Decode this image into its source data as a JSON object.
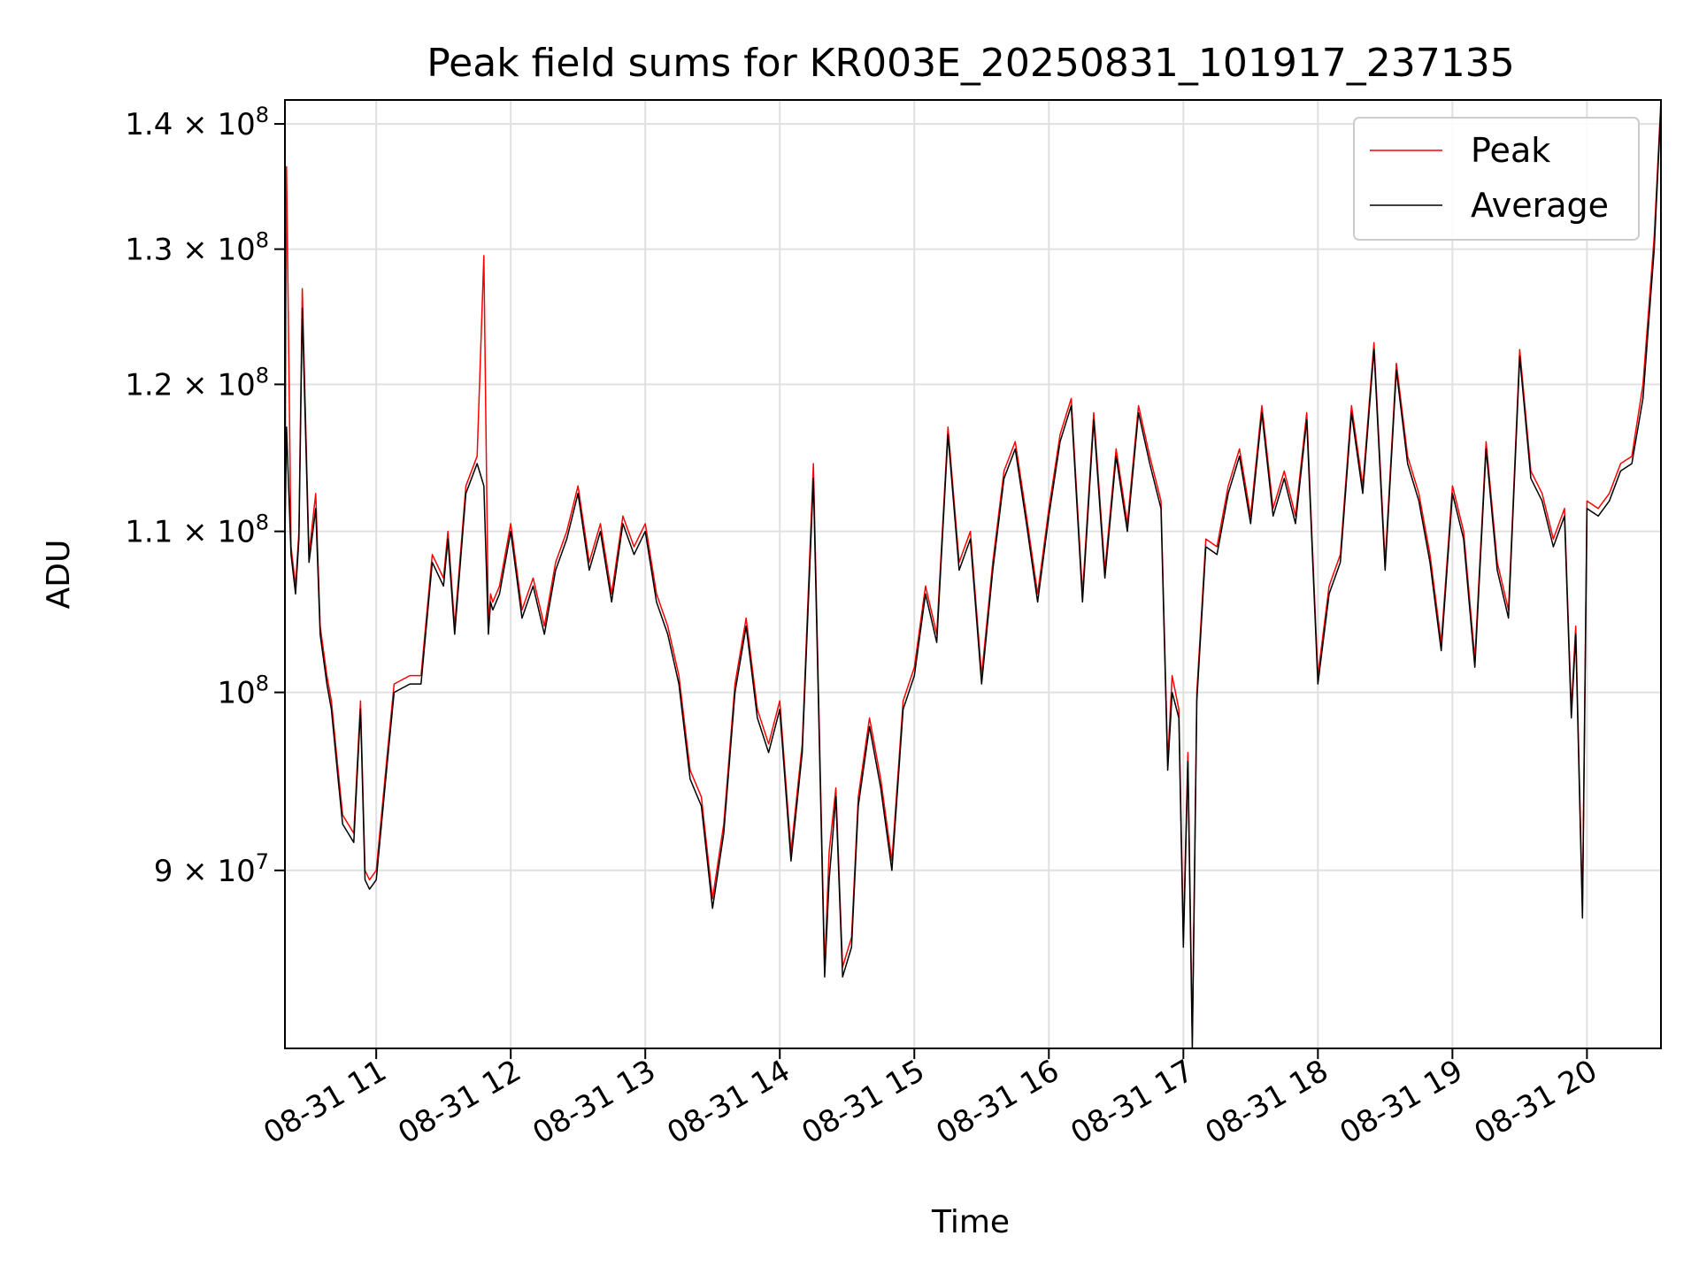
{
  "chart_data": {
    "type": "line",
    "title": "Peak field sums for KR003E_20250831_101917_237135",
    "xlabel": "Time",
    "ylabel": "ADU",
    "y_scale": "log",
    "ylim": [
      81000000,
      142000000
    ],
    "xlim": [
      "2025-08-31T10:19:17",
      "2025-08-31T20:33:00"
    ],
    "grid": true,
    "legend_position": "upper right",
    "x_ticks": [
      {
        "value": "2025-08-31T11:00:00",
        "label": "08-31 11"
      },
      {
        "value": "2025-08-31T12:00:00",
        "label": "08-31 12"
      },
      {
        "value": "2025-08-31T13:00:00",
        "label": "08-31 13"
      },
      {
        "value": "2025-08-31T14:00:00",
        "label": "08-31 14"
      },
      {
        "value": "2025-08-31T15:00:00",
        "label": "08-31 15"
      },
      {
        "value": "2025-08-31T16:00:00",
        "label": "08-31 16"
      },
      {
        "value": "2025-08-31T17:00:00",
        "label": "08-31 17"
      },
      {
        "value": "2025-08-31T18:00:00",
        "label": "08-31 18"
      },
      {
        "value": "2025-08-31T19:00:00",
        "label": "08-31 19"
      },
      {
        "value": "2025-08-31T20:00:00",
        "label": "08-31 20"
      }
    ],
    "y_ticks": [
      {
        "value": 90000000,
        "base": "9 × 10",
        "exp": "7"
      },
      {
        "value": 100000000,
        "base": "10",
        "exp": "8"
      },
      {
        "value": 110000000,
        "base": "1.1 × 10",
        "exp": "8"
      },
      {
        "value": 120000000,
        "base": "1.2 × 10",
        "exp": "8"
      },
      {
        "value": 130000000,
        "base": "1.3 × 10",
        "exp": "8"
      },
      {
        "value": 140000000,
        "base": "1.4 × 10",
        "exp": "8"
      }
    ],
    "colors": {
      "Peak": "#ff0000",
      "Average": "#000000"
    },
    "series": [
      {
        "name": "Peak",
        "x": [
          "2025-08-31T10:19:17",
          "2025-08-31T10:20:00",
          "2025-08-31T10:22:00",
          "2025-08-31T10:24:00",
          "2025-08-31T10:25:30",
          "2025-08-31T10:27:00",
          "2025-08-31T10:30:00",
          "2025-08-31T10:33:00",
          "2025-08-31T10:35:00",
          "2025-08-31T10:38:00",
          "2025-08-31T10:40:00",
          "2025-08-31T10:43:00",
          "2025-08-31T10:45:00",
          "2025-08-31T10:50:00",
          "2025-08-31T10:53:00",
          "2025-08-31T10:55:00",
          "2025-08-31T10:57:00",
          "2025-08-31T11:00:00",
          "2025-08-31T11:05:00",
          "2025-08-31T11:08:00",
          "2025-08-31T11:15:00",
          "2025-08-31T11:20:00",
          "2025-08-31T11:25:00",
          "2025-08-31T11:30:00",
          "2025-08-31T11:32:00",
          "2025-08-31T11:35:00",
          "2025-08-31T11:40:00",
          "2025-08-31T11:45:00",
          "2025-08-31T11:48:00",
          "2025-08-31T11:50:00",
          "2025-08-31T11:51:00",
          "2025-08-31T11:52:00",
          "2025-08-31T11:55:00",
          "2025-08-31T12:00:00",
          "2025-08-31T12:05:00",
          "2025-08-31T12:10:00",
          "2025-08-31T12:15:00",
          "2025-08-31T12:20:00",
          "2025-08-31T12:25:00",
          "2025-08-31T12:30:00",
          "2025-08-31T12:35:00",
          "2025-08-31T12:40:00",
          "2025-08-31T12:45:00",
          "2025-08-31T12:50:00",
          "2025-08-31T12:55:00",
          "2025-08-31T13:00:00",
          "2025-08-31T13:05:00",
          "2025-08-31T13:10:00",
          "2025-08-31T13:15:00",
          "2025-08-31T13:20:00",
          "2025-08-31T13:25:00",
          "2025-08-31T13:30:00",
          "2025-08-31T13:35:00",
          "2025-08-31T13:40:00",
          "2025-08-31T13:45:00",
          "2025-08-31T13:50:00",
          "2025-08-31T13:55:00",
          "2025-08-31T14:00:00",
          "2025-08-31T14:05:00",
          "2025-08-31T14:10:00",
          "2025-08-31T14:15:00",
          "2025-08-31T14:20:00",
          "2025-08-31T14:22:00",
          "2025-08-31T14:25:00",
          "2025-08-31T14:28:00",
          "2025-08-31T14:32:00",
          "2025-08-31T14:35:00",
          "2025-08-31T14:40:00",
          "2025-08-31T14:45:00",
          "2025-08-31T14:50:00",
          "2025-08-31T14:55:00",
          "2025-08-31T15:00:00",
          "2025-08-31T15:05:00",
          "2025-08-31T15:10:00",
          "2025-08-31T15:15:00",
          "2025-08-31T15:20:00",
          "2025-08-31T15:25:00",
          "2025-08-31T15:30:00",
          "2025-08-31T15:35:00",
          "2025-08-31T15:40:00",
          "2025-08-31T15:45:00",
          "2025-08-31T15:50:00",
          "2025-08-31T15:55:00",
          "2025-08-31T16:00:00",
          "2025-08-31T16:05:00",
          "2025-08-31T16:10:00",
          "2025-08-31T16:15:00",
          "2025-08-31T16:20:00",
          "2025-08-31T16:25:00",
          "2025-08-31T16:30:00",
          "2025-08-31T16:35:00",
          "2025-08-31T16:40:00",
          "2025-08-31T16:45:00",
          "2025-08-31T16:50:00",
          "2025-08-31T16:53:00",
          "2025-08-31T16:55:00",
          "2025-08-31T16:58:00",
          "2025-08-31T17:00:00",
          "2025-08-31T17:02:00",
          "2025-08-31T17:04:00",
          "2025-08-31T17:06:00",
          "2025-08-31T17:10:00",
          "2025-08-31T17:15:00",
          "2025-08-31T17:20:00",
          "2025-08-31T17:25:00",
          "2025-08-31T17:30:00",
          "2025-08-31T17:35:00",
          "2025-08-31T17:40:00",
          "2025-08-31T17:45:00",
          "2025-08-31T17:50:00",
          "2025-08-31T17:55:00",
          "2025-08-31T18:00:00",
          "2025-08-31T18:05:00",
          "2025-08-31T18:10:00",
          "2025-08-31T18:15:00",
          "2025-08-31T18:20:00",
          "2025-08-31T18:25:00",
          "2025-08-31T18:30:00",
          "2025-08-31T18:35:00",
          "2025-08-31T18:40:00",
          "2025-08-31T18:45:00",
          "2025-08-31T18:50:00",
          "2025-08-31T18:55:00",
          "2025-08-31T19:00:00",
          "2025-08-31T19:05:00",
          "2025-08-31T19:10:00",
          "2025-08-31T19:15:00",
          "2025-08-31T19:20:00",
          "2025-08-31T19:25:00",
          "2025-08-31T19:30:00",
          "2025-08-31T19:35:00",
          "2025-08-31T19:40:00",
          "2025-08-31T19:45:00",
          "2025-08-31T19:50:00",
          "2025-08-31T19:53:00",
          "2025-08-31T19:55:00",
          "2025-08-31T19:58:00",
          "2025-08-31T20:00:00",
          "2025-08-31T20:05:00",
          "2025-08-31T20:10:00",
          "2025-08-31T20:15:00",
          "2025-08-31T20:20:00",
          "2025-08-31T20:25:00",
          "2025-08-31T20:30:00",
          "2025-08-31T20:33:00"
        ],
        "y": [
          110000000,
          136500000,
          109000000,
          106500000,
          110000000,
          127000000,
          108500000,
          112500000,
          104000000,
          101000000,
          99500000,
          95500000,
          93000000,
          92000000,
          99500000,
          90000000,
          89500000,
          90000000,
          96500000,
          100500000,
          101000000,
          101000000,
          108500000,
          107000000,
          110000000,
          104000000,
          113000000,
          115000000,
          129500000,
          104000000,
          106000000,
          105500000,
          106500000,
          110500000,
          105000000,
          107000000,
          104000000,
          108000000,
          110000000,
          113000000,
          108000000,
          110500000,
          106000000,
          111000000,
          109000000,
          110500000,
          106000000,
          104000000,
          101000000,
          95500000,
          94000000,
          88500000,
          92500000,
          100500000,
          104500000,
          99000000,
          97000000,
          99500000,
          91000000,
          97000000,
          114500000,
          85000000,
          91000000,
          94500000,
          85000000,
          86500000,
          94000000,
          98500000,
          95000000,
          90500000,
          99500000,
          101500000,
          106500000,
          103500000,
          117000000,
          108000000,
          110000000,
          101000000,
          108000000,
          114000000,
          116000000,
          111000000,
          106000000,
          111500000,
          116500000,
          119000000,
          106000000,
          118000000,
          107500000,
          115500000,
          110500000,
          118500000,
          115000000,
          112000000,
          96000000,
          101000000,
          99000000,
          86500000,
          96500000,
          81500000,
          100000000,
          109500000,
          109000000,
          113000000,
          115500000,
          111000000,
          118500000,
          111500000,
          114000000,
          111000000,
          118000000,
          101000000,
          106500000,
          108500000,
          118500000,
          113000000,
          123000000,
          108000000,
          121500000,
          115000000,
          112500000,
          108500000,
          103000000,
          113000000,
          110000000,
          102000000,
          116000000,
          108000000,
          105000000,
          122500000,
          114000000,
          112500000,
          109500000,
          111500000,
          99000000,
          104000000,
          88000000,
          112000000,
          111500000,
          112500000,
          114500000,
          115000000,
          120000000,
          131000000,
          142000000
        ]
      },
      {
        "name": "Average",
        "x": [
          "2025-08-31T10:19:17",
          "2025-08-31T10:20:00",
          "2025-08-31T10:22:00",
          "2025-08-31T10:24:00",
          "2025-08-31T10:25:30",
          "2025-08-31T10:27:00",
          "2025-08-31T10:30:00",
          "2025-08-31T10:33:00",
          "2025-08-31T10:35:00",
          "2025-08-31T10:38:00",
          "2025-08-31T10:40:00",
          "2025-08-31T10:43:00",
          "2025-08-31T10:45:00",
          "2025-08-31T10:50:00",
          "2025-08-31T10:53:00",
          "2025-08-31T10:55:00",
          "2025-08-31T10:57:00",
          "2025-08-31T11:00:00",
          "2025-08-31T11:05:00",
          "2025-08-31T11:08:00",
          "2025-08-31T11:15:00",
          "2025-08-31T11:20:00",
          "2025-08-31T11:25:00",
          "2025-08-31T11:30:00",
          "2025-08-31T11:32:00",
          "2025-08-31T11:35:00",
          "2025-08-31T11:40:00",
          "2025-08-31T11:45:00",
          "2025-08-31T11:48:00",
          "2025-08-31T11:50:00",
          "2025-08-31T11:51:00",
          "2025-08-31T11:52:00",
          "2025-08-31T11:55:00",
          "2025-08-31T12:00:00",
          "2025-08-31T12:05:00",
          "2025-08-31T12:10:00",
          "2025-08-31T12:15:00",
          "2025-08-31T12:20:00",
          "2025-08-31T12:25:00",
          "2025-08-31T12:30:00",
          "2025-08-31T12:35:00",
          "2025-08-31T12:40:00",
          "2025-08-31T12:45:00",
          "2025-08-31T12:50:00",
          "2025-08-31T12:55:00",
          "2025-08-31T13:00:00",
          "2025-08-31T13:05:00",
          "2025-08-31T13:10:00",
          "2025-08-31T13:15:00",
          "2025-08-31T13:20:00",
          "2025-08-31T13:25:00",
          "2025-08-31T13:30:00",
          "2025-08-31T13:35:00",
          "2025-08-31T13:40:00",
          "2025-08-31T13:45:00",
          "2025-08-31T13:50:00",
          "2025-08-31T13:55:00",
          "2025-08-31T14:00:00",
          "2025-08-31T14:05:00",
          "2025-08-31T14:10:00",
          "2025-08-31T14:15:00",
          "2025-08-31T14:20:00",
          "2025-08-31T14:22:00",
          "2025-08-31T14:25:00",
          "2025-08-31T14:28:00",
          "2025-08-31T14:32:00",
          "2025-08-31T14:35:00",
          "2025-08-31T14:40:00",
          "2025-08-31T14:45:00",
          "2025-08-31T14:50:00",
          "2025-08-31T14:55:00",
          "2025-08-31T15:00:00",
          "2025-08-31T15:05:00",
          "2025-08-31T15:10:00",
          "2025-08-31T15:15:00",
          "2025-08-31T15:20:00",
          "2025-08-31T15:25:00",
          "2025-08-31T15:30:00",
          "2025-08-31T15:35:00",
          "2025-08-31T15:40:00",
          "2025-08-31T15:45:00",
          "2025-08-31T15:50:00",
          "2025-08-31T15:55:00",
          "2025-08-31T16:00:00",
          "2025-08-31T16:05:00",
          "2025-08-31T16:10:00",
          "2025-08-31T16:15:00",
          "2025-08-31T16:20:00",
          "2025-08-31T16:25:00",
          "2025-08-31T16:30:00",
          "2025-08-31T16:35:00",
          "2025-08-31T16:40:00",
          "2025-08-31T16:45:00",
          "2025-08-31T16:50:00",
          "2025-08-31T16:53:00",
          "2025-08-31T16:55:00",
          "2025-08-31T16:58:00",
          "2025-08-31T17:00:00",
          "2025-08-31T17:02:00",
          "2025-08-31T17:04:00",
          "2025-08-31T17:06:00",
          "2025-08-31T17:10:00",
          "2025-08-31T17:15:00",
          "2025-08-31T17:20:00",
          "2025-08-31T17:25:00",
          "2025-08-31T17:30:00",
          "2025-08-31T17:35:00",
          "2025-08-31T17:40:00",
          "2025-08-31T17:45:00",
          "2025-08-31T17:50:00",
          "2025-08-31T17:55:00",
          "2025-08-31T18:00:00",
          "2025-08-31T18:05:00",
          "2025-08-31T18:10:00",
          "2025-08-31T18:15:00",
          "2025-08-31T18:20:00",
          "2025-08-31T18:25:00",
          "2025-08-31T18:30:00",
          "2025-08-31T18:35:00",
          "2025-08-31T18:40:00",
          "2025-08-31T18:45:00",
          "2025-08-31T18:50:00",
          "2025-08-31T18:55:00",
          "2025-08-31T19:00:00",
          "2025-08-31T19:05:00",
          "2025-08-31T19:10:00",
          "2025-08-31T19:15:00",
          "2025-08-31T19:20:00",
          "2025-08-31T19:25:00",
          "2025-08-31T19:30:00",
          "2025-08-31T19:35:00",
          "2025-08-31T19:40:00",
          "2025-08-31T19:45:00",
          "2025-08-31T19:50:00",
          "2025-08-31T19:53:00",
          "2025-08-31T19:55:00",
          "2025-08-31T19:58:00",
          "2025-08-31T20:00:00",
          "2025-08-31T20:05:00",
          "2025-08-31T20:10:00",
          "2025-08-31T20:15:00",
          "2025-08-31T20:20:00",
          "2025-08-31T20:25:00",
          "2025-08-31T20:30:00",
          "2025-08-31T20:33:00"
        ],
        "y": [
          109500000,
          117000000,
          108500000,
          106000000,
          109500000,
          125500000,
          108000000,
          111500000,
          103500000,
          100500000,
          99000000,
          95000000,
          92500000,
          91500000,
          99000000,
          89500000,
          89000000,
          89500000,
          96000000,
          100000000,
          100500000,
          100500000,
          108000000,
          106500000,
          109500000,
          103500000,
          112500000,
          114500000,
          113000000,
          103500000,
          105500000,
          105000000,
          106000000,
          110000000,
          104500000,
          106500000,
          103500000,
          107500000,
          109500000,
          112500000,
          107500000,
          110000000,
          105500000,
          110500000,
          108500000,
          110000000,
          105500000,
          103500000,
          100500000,
          95000000,
          93500000,
          88000000,
          92000000,
          100000000,
          104000000,
          98500000,
          96500000,
          99000000,
          90500000,
          96500000,
          113500000,
          84500000,
          89500000,
          94000000,
          84500000,
          86000000,
          93500000,
          98000000,
          94500000,
          90000000,
          99000000,
          101000000,
          106000000,
          103000000,
          116500000,
          107500000,
          109500000,
          100500000,
          107500000,
          113500000,
          115500000,
          110500000,
          105500000,
          111000000,
          116000000,
          118500000,
          105500000,
          117500000,
          107000000,
          115000000,
          110000000,
          118000000,
          114500000,
          111500000,
          95500000,
          100000000,
          98500000,
          86000000,
          96000000,
          81000000,
          99500000,
          109000000,
          108500000,
          112500000,
          115000000,
          110500000,
          118000000,
          111000000,
          113500000,
          110500000,
          117500000,
          100500000,
          106000000,
          108000000,
          118000000,
          112500000,
          122500000,
          107500000,
          121000000,
          114500000,
          112000000,
          108000000,
          102500000,
          112500000,
          109500000,
          101500000,
          115500000,
          107500000,
          104500000,
          122000000,
          113500000,
          112000000,
          109000000,
          111000000,
          98500000,
          103500000,
          87500000,
          111500000,
          111000000,
          112000000,
          114000000,
          114500000,
          119000000,
          130000000,
          141500000
        ]
      }
    ]
  }
}
